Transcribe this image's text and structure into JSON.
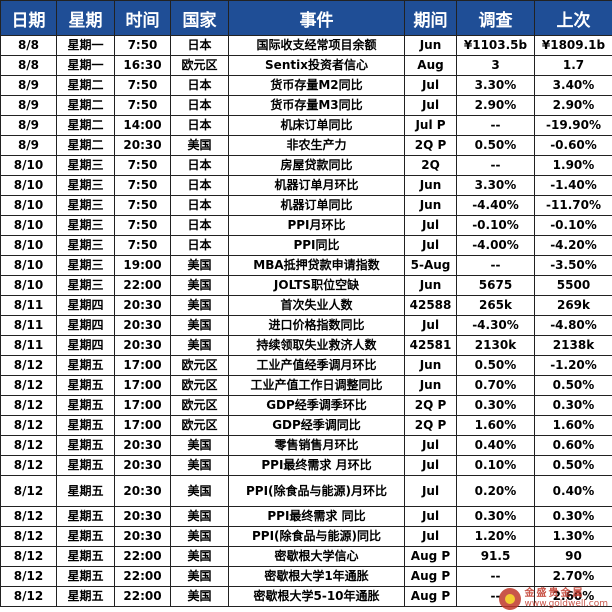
{
  "headers": [
    "日期",
    "星期",
    "时间",
    "国家",
    "事件",
    "期间",
    "调查",
    "上次"
  ],
  "rows": [
    [
      "8/8",
      "星期一",
      "7:50",
      "日本",
      "国际收支经常项目余额",
      "Jun",
      "¥1103.5b",
      "¥1809.1b"
    ],
    [
      "8/8",
      "星期一",
      "16:30",
      "欧元区",
      "Sentix投资者信心",
      "Aug",
      "3",
      "1.7"
    ],
    [
      "8/9",
      "星期二",
      "7:50",
      "日本",
      "货币存量M2同比",
      "Jul",
      "3.30%",
      "3.40%"
    ],
    [
      "8/9",
      "星期二",
      "7:50",
      "日本",
      "货币存量M3同比",
      "Jul",
      "2.90%",
      "2.90%"
    ],
    [
      "8/9",
      "星期二",
      "14:00",
      "日本",
      "机床订单同比",
      "Jul P",
      "--",
      "-19.90%"
    ],
    [
      "8/9",
      "星期二",
      "20:30",
      "美国",
      "非农生产力",
      "2Q P",
      "0.50%",
      "-0.60%"
    ],
    [
      "8/10",
      "星期三",
      "7:50",
      "日本",
      "房屋贷款同比",
      "2Q",
      "--",
      "1.90%"
    ],
    [
      "8/10",
      "星期三",
      "7:50",
      "日本",
      "机器订单月环比",
      "Jun",
      "3.30%",
      "-1.40%"
    ],
    [
      "8/10",
      "星期三",
      "7:50",
      "日本",
      "机器订单同比",
      "Jun",
      "-4.40%",
      "-11.70%"
    ],
    [
      "8/10",
      "星期三",
      "7:50",
      "日本",
      "PPI月环比",
      "Jul",
      "-0.10%",
      "-0.10%"
    ],
    [
      "8/10",
      "星期三",
      "7:50",
      "日本",
      "PPI同比",
      "Jul",
      "-4.00%",
      "-4.20%"
    ],
    [
      "8/10",
      "星期三",
      "19:00",
      "美国",
      "MBA抵押贷款申请指数",
      "5-Aug",
      "--",
      "-3.50%"
    ],
    [
      "8/10",
      "星期三",
      "22:00",
      "美国",
      "JOLTS职位空缺",
      "Jun",
      "5675",
      "5500"
    ],
    [
      "8/11",
      "星期四",
      "20:30",
      "美国",
      "首次失业人数",
      "42588",
      "265k",
      "269k"
    ],
    [
      "8/11",
      "星期四",
      "20:30",
      "美国",
      "进口价格指数同比",
      "Jul",
      "-4.30%",
      "-4.80%"
    ],
    [
      "8/11",
      "星期四",
      "20:30",
      "美国",
      "持续领取失业救济人数",
      "42581",
      "2130k",
      "2138k"
    ],
    [
      "8/12",
      "星期五",
      "17:00",
      "欧元区",
      "工业产值经季调月环比",
      "Jun",
      "0.50%",
      "-1.20%"
    ],
    [
      "8/12",
      "星期五",
      "17:00",
      "欧元区",
      "工业产值工作日调整同比",
      "Jun",
      "0.70%",
      "0.50%"
    ],
    [
      "8/12",
      "星期五",
      "17:00",
      "欧元区",
      "GDP经季调季环比",
      "2Q P",
      "0.30%",
      "0.30%"
    ],
    [
      "8/12",
      "星期五",
      "17:00",
      "欧元区",
      "GDP经季调同比",
      "2Q P",
      "1.60%",
      "1.60%"
    ],
    [
      "8/12",
      "星期五",
      "20:30",
      "美国",
      "零售销售月环比",
      "Jul",
      "0.40%",
      "0.60%"
    ],
    [
      "8/12",
      "星期五",
      "20:30",
      "美国",
      "PPI最终需求 月环比",
      "Jul",
      "0.10%",
      "0.50%"
    ],
    [
      "8/12",
      "星期五",
      "20:30",
      "美国",
      "PPI(除食品与能源)月环比",
      "Jul",
      "0.20%",
      "0.40%"
    ],
    [
      "8/12",
      "星期五",
      "20:30",
      "美国",
      "PPI最终需求 同比",
      "Jul",
      "0.30%",
      "0.30%"
    ],
    [
      "8/12",
      "星期五",
      "20:30",
      "美国",
      "PPI(除食品与能源)同比",
      "Jul",
      "1.20%",
      "1.30%"
    ],
    [
      "8/12",
      "星期五",
      "22:00",
      "美国",
      "密歇根大学信心",
      "Aug P",
      "91.5",
      "90"
    ],
    [
      "8/12",
      "星期五",
      "22:00",
      "美国",
      "密歇根大学1年通胀",
      "Aug P",
      "--",
      "2.70%"
    ],
    [
      "8/12",
      "星期五",
      "22:00",
      "美国",
      "密歇根大学5-10年通胀",
      "Aug P",
      "--",
      "2.60%"
    ]
  ],
  "tall_rows": [
    22
  ],
  "watermark": {
    "cn": "金盛贵金属",
    "url": "www.goldwell.com"
  },
  "colors": {
    "header_bg": "#1f4e96",
    "header_text": "#ffffff",
    "border": "#222222",
    "watermark": "#c0392b"
  }
}
